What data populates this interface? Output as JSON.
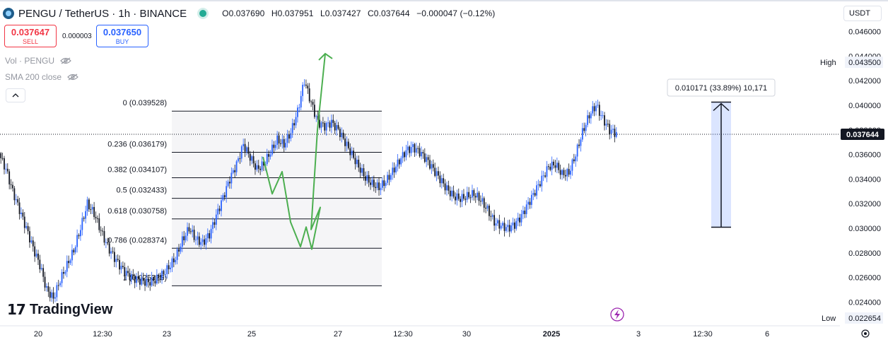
{
  "header": {
    "symbol_title": "PENGU / TetherUS · 1h · BINANCE",
    "ohlc": [
      {
        "label": "O",
        "value": "0.037690"
      },
      {
        "label": "H",
        "value": "0.037951"
      },
      {
        "label": "L",
        "value": "0.037427"
      },
      {
        "label": "C",
        "value": "0.037644"
      }
    ],
    "change": "−0.000047 (−0.12%)"
  },
  "trade": {
    "sell_price": "0.037647",
    "sell_label": "SELL",
    "spread": "0.000003",
    "buy_price": "0.037650",
    "buy_label": "BUY"
  },
  "indicators": {
    "volume": "Vol · PENGU",
    "sma": "SMA 200 close"
  },
  "currency": "USDT",
  "branding": "TradingView",
  "colors": {
    "up": "#2962ff",
    "down": "#131722",
    "green_path": "#4caf50",
    "measure_fill": "#2962ff"
  },
  "chart_data": {
    "type": "candlestick",
    "price_axis_ticks": [
      "0.046000",
      "0.044000",
      "0.042000",
      "0.040000",
      "0.038000",
      "0.036000",
      "0.034000",
      "0.032000",
      "0.030000",
      "0.028000",
      "0.026000",
      "0.024000"
    ],
    "time_axis_labels": [
      "20",
      "12:30",
      "23",
      "25",
      "27",
      "12:30",
      "30",
      "2025",
      "3",
      "12:30",
      "6"
    ],
    "ylim": [
      0.0225,
      0.0472
    ],
    "current_price": "0.037644",
    "high": {
      "label": "High",
      "value": "0.043500"
    },
    "low": {
      "label": "Low",
      "value": "0.022654"
    },
    "fib_levels": [
      {
        "label": "0 (0.039528)",
        "price": 0.039528
      },
      {
        "label": "0.236 (0.036179)",
        "price": 0.036179
      },
      {
        "label": "0.382 (0.034107)",
        "price": 0.034107
      },
      {
        "label": "0.5 (0.032433)",
        "price": 0.032433
      },
      {
        "label": "0.618 (0.030758)",
        "price": 0.030758
      },
      {
        "label": "0.786 (0.028374)",
        "price": 0.028374
      },
      {
        "label": "1 (0.025325)",
        "price": 0.025325
      }
    ],
    "measure": {
      "label": "0.010171 (33.89%) 10,171",
      "from": 0.030088,
      "to": 0.040259
    },
    "projection_path": [
      0.0358,
      0.0328,
      0.0346,
      0.0305,
      0.0285,
      0.0301,
      0.0283,
      0.0317,
      0.0299,
      0.038,
      0.0442
    ],
    "close_path": [
      0.036,
      0.0348,
      0.033,
      0.0315,
      0.03,
      0.0284,
      0.027,
      0.025,
      0.0243,
      0.0258,
      0.027,
      0.0282,
      0.03,
      0.032,
      0.0312,
      0.0298,
      0.0285,
      0.0276,
      0.0268,
      0.0262,
      0.0259,
      0.0257,
      0.0256,
      0.0258,
      0.0262,
      0.0268,
      0.0276,
      0.029,
      0.03,
      0.0291,
      0.0288,
      0.0295,
      0.031,
      0.0325,
      0.034,
      0.0352,
      0.0368,
      0.0358,
      0.0348,
      0.0352,
      0.0362,
      0.0372,
      0.0368,
      0.0378,
      0.0395,
      0.042,
      0.0402,
      0.0386,
      0.0383,
      0.0386,
      0.038,
      0.037,
      0.036,
      0.035,
      0.0341,
      0.0336,
      0.0333,
      0.0338,
      0.0346,
      0.0355,
      0.0363,
      0.0366,
      0.0362,
      0.0356,
      0.0348,
      0.034,
      0.0332,
      0.0326,
      0.0324,
      0.0326,
      0.0328,
      0.0323,
      0.0315,
      0.0305,
      0.0302,
      0.03,
      0.0303,
      0.031,
      0.032,
      0.033,
      0.034,
      0.035,
      0.0352,
      0.0344,
      0.0345,
      0.036,
      0.0378,
      0.0392,
      0.04,
      0.0389,
      0.038,
      0.0377
    ]
  }
}
